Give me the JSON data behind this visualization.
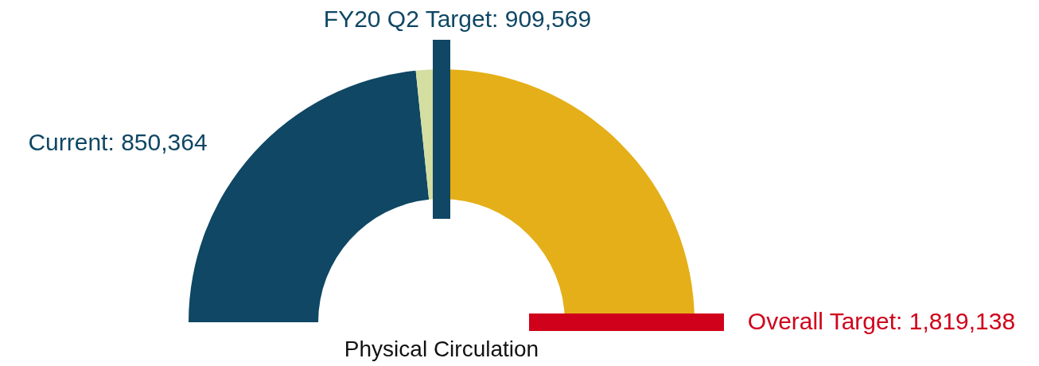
{
  "chart_data": {
    "type": "donut",
    "title": "Physical Circulation",
    "categories": [
      null,
      null,
      null
    ],
    "values": [
      46.75,
      3.25,
      50
    ],
    "colors": [
      "#0f4764",
      "#d3dea0",
      "#e4af18"
    ],
    "annotations": [
      "FY20 Q2 Target: 909,569",
      "Current: 850,364",
      "Overall Target: 1,819,138"
    ]
  }
}
